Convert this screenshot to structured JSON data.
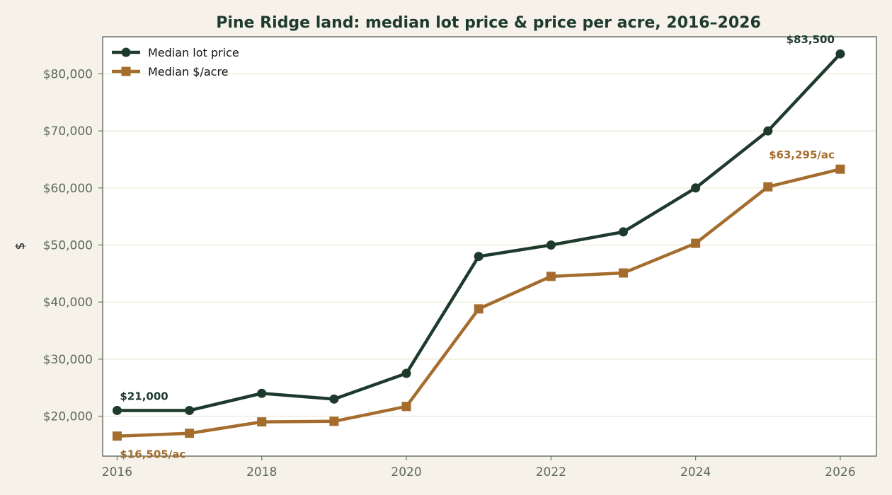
{
  "chart_data": {
    "type": "line",
    "title": "Pine Ridge land: median lot price & price per acre, 2016–2026",
    "xlabel": "",
    "ylabel": "$",
    "x": [
      2016,
      2017,
      2018,
      2019,
      2020,
      2021,
      2022,
      2023,
      2024,
      2025,
      2026
    ],
    "xticks": [
      2016,
      2018,
      2020,
      2022,
      2024,
      2026
    ],
    "xlim": [
      2015.8,
      2026.5
    ],
    "ylim": [
      13000,
      86500
    ],
    "yticks": [
      20000,
      30000,
      40000,
      50000,
      60000,
      70000,
      80000
    ],
    "ytick_labels": [
      "$20,000",
      "$30,000",
      "$40,000",
      "$50,000",
      "$60,000",
      "$70,000",
      "$80,000"
    ],
    "grid": "horizontal",
    "legend_position": "top-left",
    "series": [
      {
        "name": "Median lot price",
        "color": "#1e3a2d",
        "marker": "circle",
        "values": [
          21000,
          21000,
          24000,
          23000,
          27500,
          48000,
          50000,
          52300,
          60000,
          70000,
          83500
        ]
      },
      {
        "name": "Median $/acre",
        "color": "#a46d2e",
        "marker": "square",
        "values": [
          16505,
          17000,
          19000,
          19100,
          21700,
          38800,
          44500,
          45100,
          50300,
          60200,
          63295
        ]
      }
    ],
    "annotations": [
      {
        "series": 0,
        "index": 0,
        "text": "$21,000",
        "placement": "above-right"
      },
      {
        "series": 0,
        "index": 10,
        "text": "$83,500",
        "placement": "above-left"
      },
      {
        "series": 1,
        "index": 0,
        "text": "$16,505/ac",
        "placement": "below-right"
      },
      {
        "series": 1,
        "index": 10,
        "text": "$63,295/ac",
        "placement": "above-left"
      }
    ]
  },
  "colors": {
    "background": "#f6f2ea",
    "plot_background": "#ffffff",
    "axis": "#6b7568",
    "tick_text": "#5d6b5c",
    "grid": "#ece9d6",
    "title": "#1e3a2d"
  }
}
